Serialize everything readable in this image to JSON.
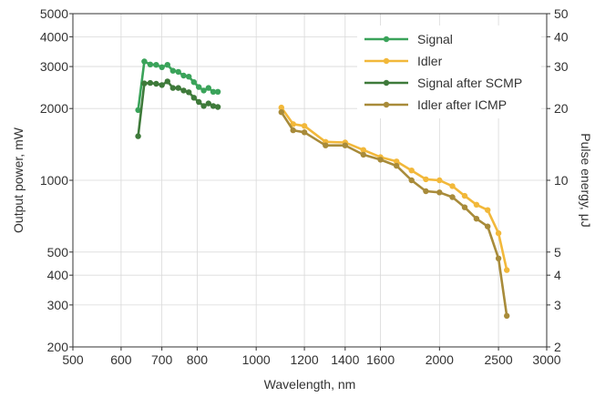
{
  "chart_data": {
    "type": "line",
    "title": "",
    "xlabel": "Wavelength, nm",
    "ylabel": "Output power, mW",
    "y2label": "Pulse energy, μJ",
    "x_scale": "log",
    "y_scale": "log",
    "xlim": [
      500,
      3000
    ],
    "ylim": [
      200,
      5000
    ],
    "y2lim": [
      2,
      50
    ],
    "x_ticks": [
      "500",
      "600",
      "700",
      "800",
      "1000",
      "1200",
      "1400",
      "1600",
      "2000",
      "2500",
      "3000"
    ],
    "y_ticks": [
      "200",
      "300",
      "400",
      "500",
      "1000",
      "2000",
      "3000",
      "4000",
      "5000"
    ],
    "y2_ticks": [
      "2",
      "3",
      "4",
      "5",
      "10",
      "20",
      "30",
      "40",
      "50"
    ],
    "grid": true,
    "legend_position": "top-right",
    "series": [
      {
        "name": "Signal",
        "color": "#3aa35a",
        "x": [
          640,
          655,
          670,
          685,
          700,
          715,
          730,
          745,
          760,
          775,
          790,
          805,
          820,
          835,
          850,
          865
        ],
        "y": [
          1970,
          3150,
          3060,
          3050,
          2980,
          3050,
          2880,
          2850,
          2750,
          2720,
          2580,
          2460,
          2380,
          2440,
          2350,
          2350
        ]
      },
      {
        "name": "Idler",
        "color": "#f2b83a",
        "x": [
          1100,
          1150,
          1200,
          1300,
          1400,
          1500,
          1600,
          1700,
          1800,
          1900,
          2000,
          2100,
          2200,
          2300,
          2400,
          2500,
          2580
        ],
        "y": [
          2020,
          1720,
          1690,
          1450,
          1440,
          1340,
          1250,
          1200,
          1100,
          1010,
          1000,
          945,
          860,
          790,
          750,
          600,
          420
        ]
      },
      {
        "name": "Signal after SCMP",
        "color": "#3e7a3a",
        "x": [
          640,
          655,
          670,
          685,
          700,
          715,
          730,
          745,
          760,
          775,
          790,
          805,
          820,
          835,
          850,
          865
        ],
        "y": [
          1530,
          2550,
          2560,
          2540,
          2510,
          2600,
          2440,
          2440,
          2380,
          2340,
          2220,
          2130,
          2050,
          2100,
          2050,
          2030
        ]
      },
      {
        "name": "Idler after ICMP",
        "color": "#a88b3a",
        "x": [
          1100,
          1150,
          1200,
          1300,
          1400,
          1500,
          1600,
          1700,
          1800,
          1900,
          2000,
          2100,
          2200,
          2300,
          2400,
          2500,
          2580
        ],
        "y": [
          1930,
          1620,
          1590,
          1400,
          1400,
          1280,
          1220,
          1150,
          1000,
          900,
          890,
          850,
          770,
          690,
          640,
          470,
          270
        ]
      }
    ]
  }
}
